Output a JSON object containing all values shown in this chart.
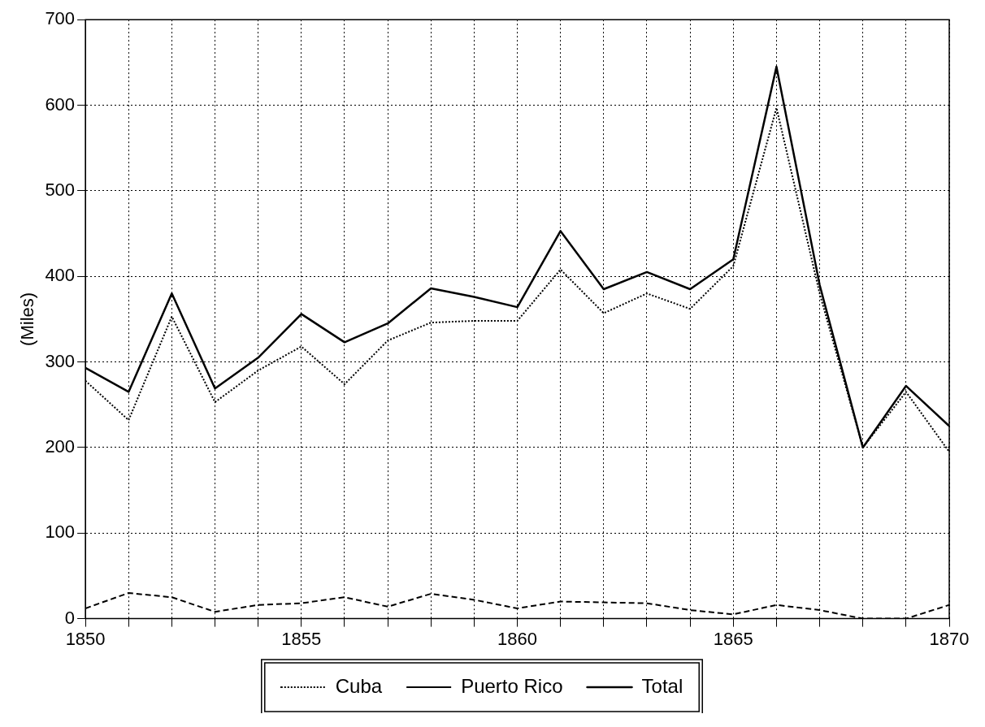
{
  "chart_data": {
    "type": "line",
    "ylabel": "(Miles)",
    "x": [
      1850,
      1851,
      1852,
      1853,
      1854,
      1855,
      1856,
      1857,
      1858,
      1859,
      1860,
      1861,
      1862,
      1863,
      1864,
      1865,
      1866,
      1867,
      1868,
      1869,
      1870
    ],
    "series": [
      {
        "name": "Cuba",
        "color": "#000000",
        "line_style": "dotted",
        "values": [
          278,
          232,
          353,
          253,
          290,
          318,
          274,
          325,
          346,
          348,
          348,
          408,
          357,
          380,
          362,
          412,
          597,
          380,
          200,
          265,
          195
        ]
      },
      {
        "name": "Puerto Rico",
        "color": "#000000",
        "line_style": "dashed",
        "values": [
          12,
          30,
          25,
          8,
          16,
          18,
          25,
          14,
          29,
          22,
          12,
          20,
          19,
          18,
          10,
          5,
          16,
          10,
          0,
          0,
          16
        ]
      },
      {
        "name": "Total",
        "color": "#000000",
        "line_style": "solid",
        "values": [
          293,
          265,
          380,
          269,
          305,
          356,
          323,
          345,
          386,
          376,
          364,
          453,
          385,
          405,
          385,
          420,
          645,
          390,
          200,
          272,
          225
        ]
      }
    ],
    "xlim": [
      1850,
      1870
    ],
    "xticks": [
      1850,
      {
        "value": 1851,
        "label": null
      },
      {
        "value": 1852,
        "label": null
      },
      {
        "value": 1853,
        "label": null
      },
      {
        "value": 1854,
        "label": null
      },
      1855,
      {
        "value": 1856,
        "label": null
      },
      {
        "value": 1857,
        "label": null
      },
      {
        "value": 1858,
        "label": null
      },
      {
        "value": 1859,
        "label": null
      },
      1860,
      {
        "value": 1861,
        "label": null
      },
      {
        "value": 1862,
        "label": null
      },
      {
        "value": 1863,
        "label": null
      },
      {
        "value": 1864,
        "label": null
      },
      1865,
      {
        "value": 1866,
        "label": null
      },
      {
        "value": 1867,
        "label": null
      },
      {
        "value": 1868,
        "label": null
      },
      {
        "value": 1869,
        "label": null
      },
      1870
    ],
    "ylim": [
      0,
      700
    ],
    "yticks": [
      0,
      100,
      200,
      300,
      400,
      500,
      600,
      700
    ],
    "grid": true,
    "legend": "bottom",
    "marker": "none"
  }
}
